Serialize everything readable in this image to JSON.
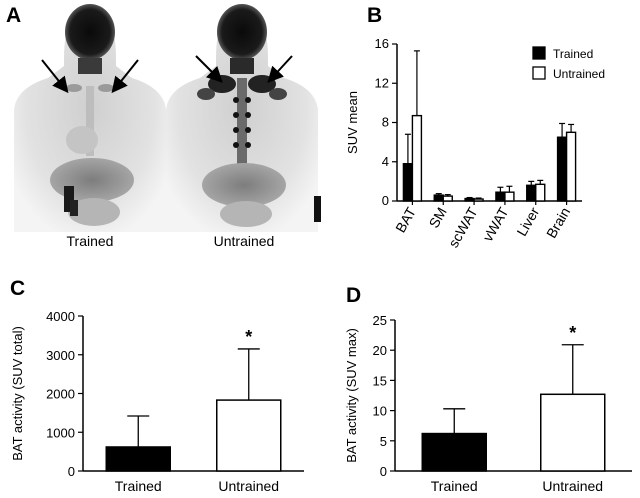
{
  "panels": {
    "a": {
      "letter": "A",
      "images": [
        {
          "caption": "Trained"
        },
        {
          "caption": "Untrained"
        }
      ]
    },
    "b": {
      "letter": "B"
    },
    "c": {
      "letter": "C"
    },
    "d": {
      "letter": "D"
    }
  },
  "colors": {
    "trained": "#000000",
    "untrained": "#ffffff",
    "scan_dark": "#111111",
    "scan_mid": "#8a8a8a",
    "scan_light": "#d6d6d6"
  },
  "chart_data": [
    {
      "id": "b",
      "type": "bar",
      "categories": [
        "BAT",
        "SM",
        "scWAT",
        "vWAT",
        "Liver",
        "Brain"
      ],
      "series": [
        {
          "name": "Trained",
          "values": [
            3.8,
            0.6,
            0.25,
            0.9,
            1.6,
            6.5
          ],
          "errors": [
            3.0,
            0.15,
            0.1,
            0.5,
            0.4,
            1.4
          ]
        },
        {
          "name": "Untrained",
          "values": [
            8.7,
            0.5,
            0.2,
            0.9,
            1.7,
            7.0
          ],
          "errors": [
            6.6,
            0.15,
            0.1,
            0.6,
            0.4,
            0.8
          ]
        }
      ],
      "ylabel": "SUV mean",
      "xlabel": "",
      "ylim": [
        0,
        16
      ],
      "yticks": [
        0,
        4,
        8,
        12,
        16
      ],
      "legend": "top-right"
    },
    {
      "id": "c",
      "type": "bar",
      "categories": [
        "Trained",
        "Untrained"
      ],
      "values": [
        620,
        1830
      ],
      "errors": [
        800,
        1320
      ],
      "ylabel": "BAT activity (SUV total)",
      "xlabel": "",
      "ylim": [
        0,
        4000
      ],
      "yticks": [
        0,
        1000,
        2000,
        3000,
        4000
      ],
      "significance": {
        "category": "Untrained",
        "mark": "*"
      }
    },
    {
      "id": "d",
      "type": "bar",
      "categories": [
        "Trained",
        "Untrained"
      ],
      "values": [
        6.2,
        12.7
      ],
      "errors": [
        4.1,
        8.2
      ],
      "ylabel": "BAT activity (SUV max)",
      "xlabel": "",
      "ylim": [
        0,
        25
      ],
      "yticks": [
        0,
        5,
        10,
        15,
        20,
        25
      ],
      "significance": {
        "category": "Untrained",
        "mark": "*"
      }
    }
  ]
}
